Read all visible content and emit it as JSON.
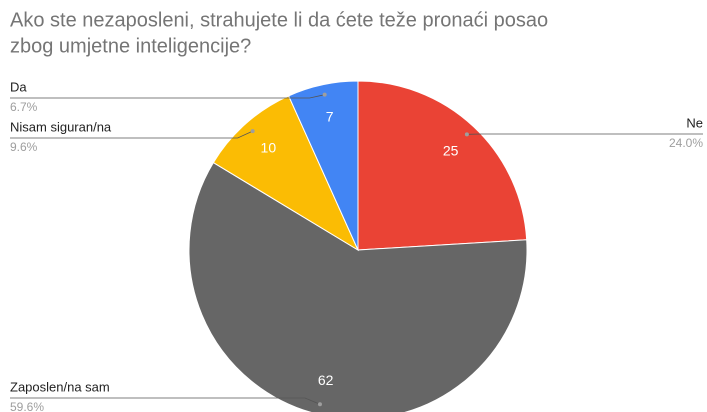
{
  "chart_data": {
    "type": "pie",
    "title": [
      "Ako ste nezaposleni, strahujete li da ćete teže pronaći posao",
      "zbog umjetne inteligencije?"
    ],
    "categories": [
      "Ne",
      "Zaposlen/na sam",
      "Nisam siguran/na",
      "Da"
    ],
    "values": [
      25,
      62,
      10,
      7
    ],
    "percent_labels": [
      "24.0%",
      "59.6%",
      "9.6%",
      "6.7%"
    ],
    "colors": [
      "#ea4335",
      "#666666",
      "#fbbc04",
      "#4285f4"
    ]
  }
}
